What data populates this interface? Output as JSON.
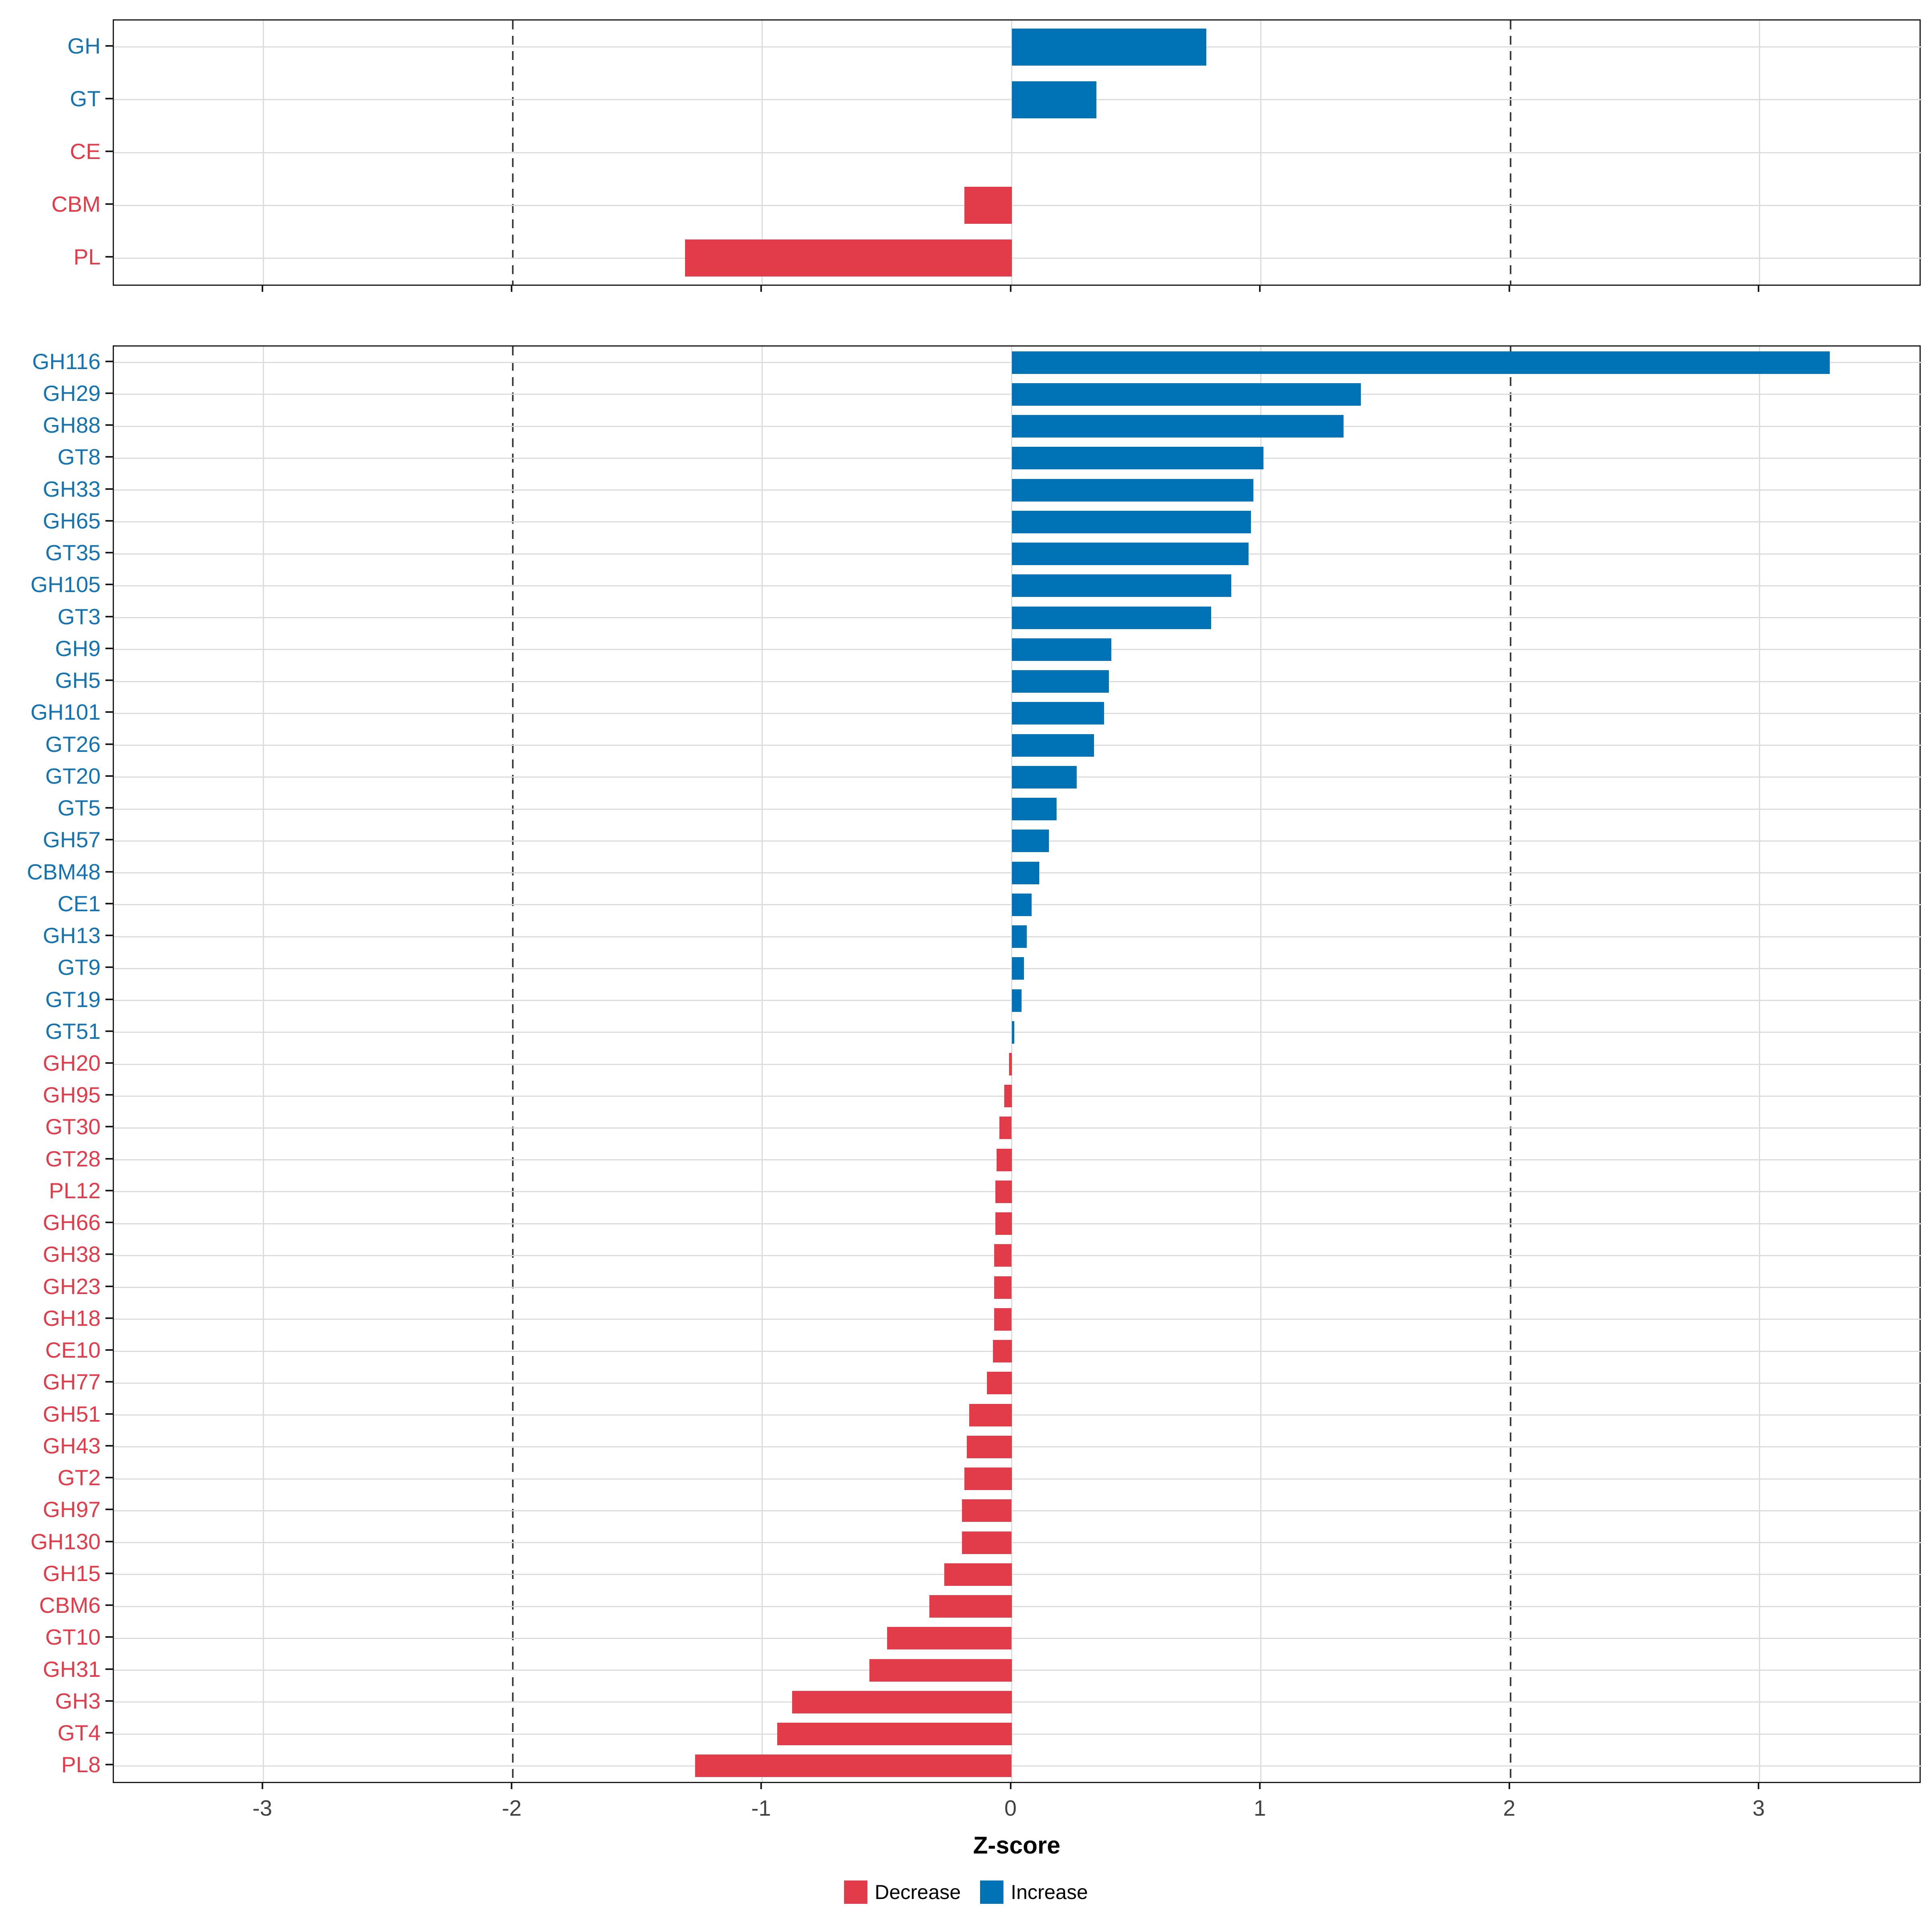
{
  "axis": {
    "label": "Z-score",
    "tick_labels": [
      "-3",
      "-2",
      "-1",
      "0",
      "1",
      "2",
      "3"
    ],
    "tick_values": [
      -3,
      -2,
      -1,
      0,
      1,
      2,
      3
    ],
    "range": [
      -3.6,
      3.65
    ],
    "dashed_lines": [
      -2,
      2
    ],
    "grid": "on"
  },
  "legend": {
    "position": "bottom-center",
    "items": [
      {
        "label": "Decrease",
        "color": "#e23b4a"
      },
      {
        "label": "Increase",
        "color": "#0073b6"
      }
    ]
  },
  "colors": {
    "increase": "#0073b6",
    "decrease": "#e23b4a",
    "label_increase": "#1673b1",
    "label_decrease": "#e23b4a",
    "gridline": "#dcdcdc",
    "dashed_line": "#3c3c3c",
    "axis_text": "#424242",
    "panel_border": "#1a1a1a"
  },
  "chart_data": [
    {
      "type": "bar",
      "orientation": "horizontal",
      "panel": "families",
      "title": "",
      "xlabel": "Z-score",
      "xlim": [
        -3.6,
        3.65
      ],
      "categories": [
        "GH",
        "GT",
        "CE",
        "CBM",
        "PL"
      ],
      "values": [
        0.78,
        0.34,
        0.0,
        -0.19,
        -1.31
      ],
      "directions": [
        "increase",
        "increase",
        "decrease",
        "decrease",
        "decrease"
      ]
    },
    {
      "type": "bar",
      "orientation": "horizontal",
      "panel": "subfamilies",
      "title": "",
      "xlabel": "Z-score",
      "xlim": [
        -3.6,
        3.65
      ],
      "categories": [
        "GH116",
        "GH29",
        "GH88",
        "GT8",
        "GH33",
        "GH65",
        "GT35",
        "GH105",
        "GT3",
        "GH9",
        "GH5",
        "GH101",
        "GT26",
        "GT20",
        "GT5",
        "GH57",
        "CBM48",
        "CE1",
        "GH13",
        "GT9",
        "GT19",
        "GT51",
        "GH20",
        "GH95",
        "GT30",
        "GT28",
        "PL12",
        "GH66",
        "GH38",
        "GH23",
        "GH18",
        "CE10",
        "GH77",
        "GH51",
        "GH43",
        "GT2",
        "GH97",
        "GH130",
        "GH15",
        "CBM6",
        "GT10",
        "GH31",
        "GH3",
        "GT4",
        "PL8"
      ],
      "values": [
        3.28,
        1.4,
        1.33,
        1.01,
        0.97,
        0.96,
        0.95,
        0.88,
        0.8,
        0.4,
        0.39,
        0.37,
        0.33,
        0.26,
        0.18,
        0.15,
        0.11,
        0.08,
        0.06,
        0.05,
        0.04,
        0.01,
        -0.01,
        -0.03,
        -0.05,
        -0.06,
        -0.065,
        -0.065,
        -0.07,
        -0.07,
        -0.07,
        -0.075,
        -0.1,
        -0.17,
        -0.18,
        -0.19,
        -0.2,
        -0.2,
        -0.27,
        -0.33,
        -0.5,
        -0.57,
        -0.88,
        -0.94,
        -1.27
      ],
      "directions": [
        "increase",
        "increase",
        "increase",
        "increase",
        "increase",
        "increase",
        "increase",
        "increase",
        "increase",
        "increase",
        "increase",
        "increase",
        "increase",
        "increase",
        "increase",
        "increase",
        "increase",
        "increase",
        "increase",
        "increase",
        "increase",
        "increase",
        "decrease",
        "decrease",
        "decrease",
        "decrease",
        "decrease",
        "decrease",
        "decrease",
        "decrease",
        "decrease",
        "decrease",
        "decrease",
        "decrease",
        "decrease",
        "decrease",
        "decrease",
        "decrease",
        "decrease",
        "decrease",
        "decrease",
        "decrease",
        "decrease",
        "decrease",
        "decrease"
      ]
    }
  ]
}
